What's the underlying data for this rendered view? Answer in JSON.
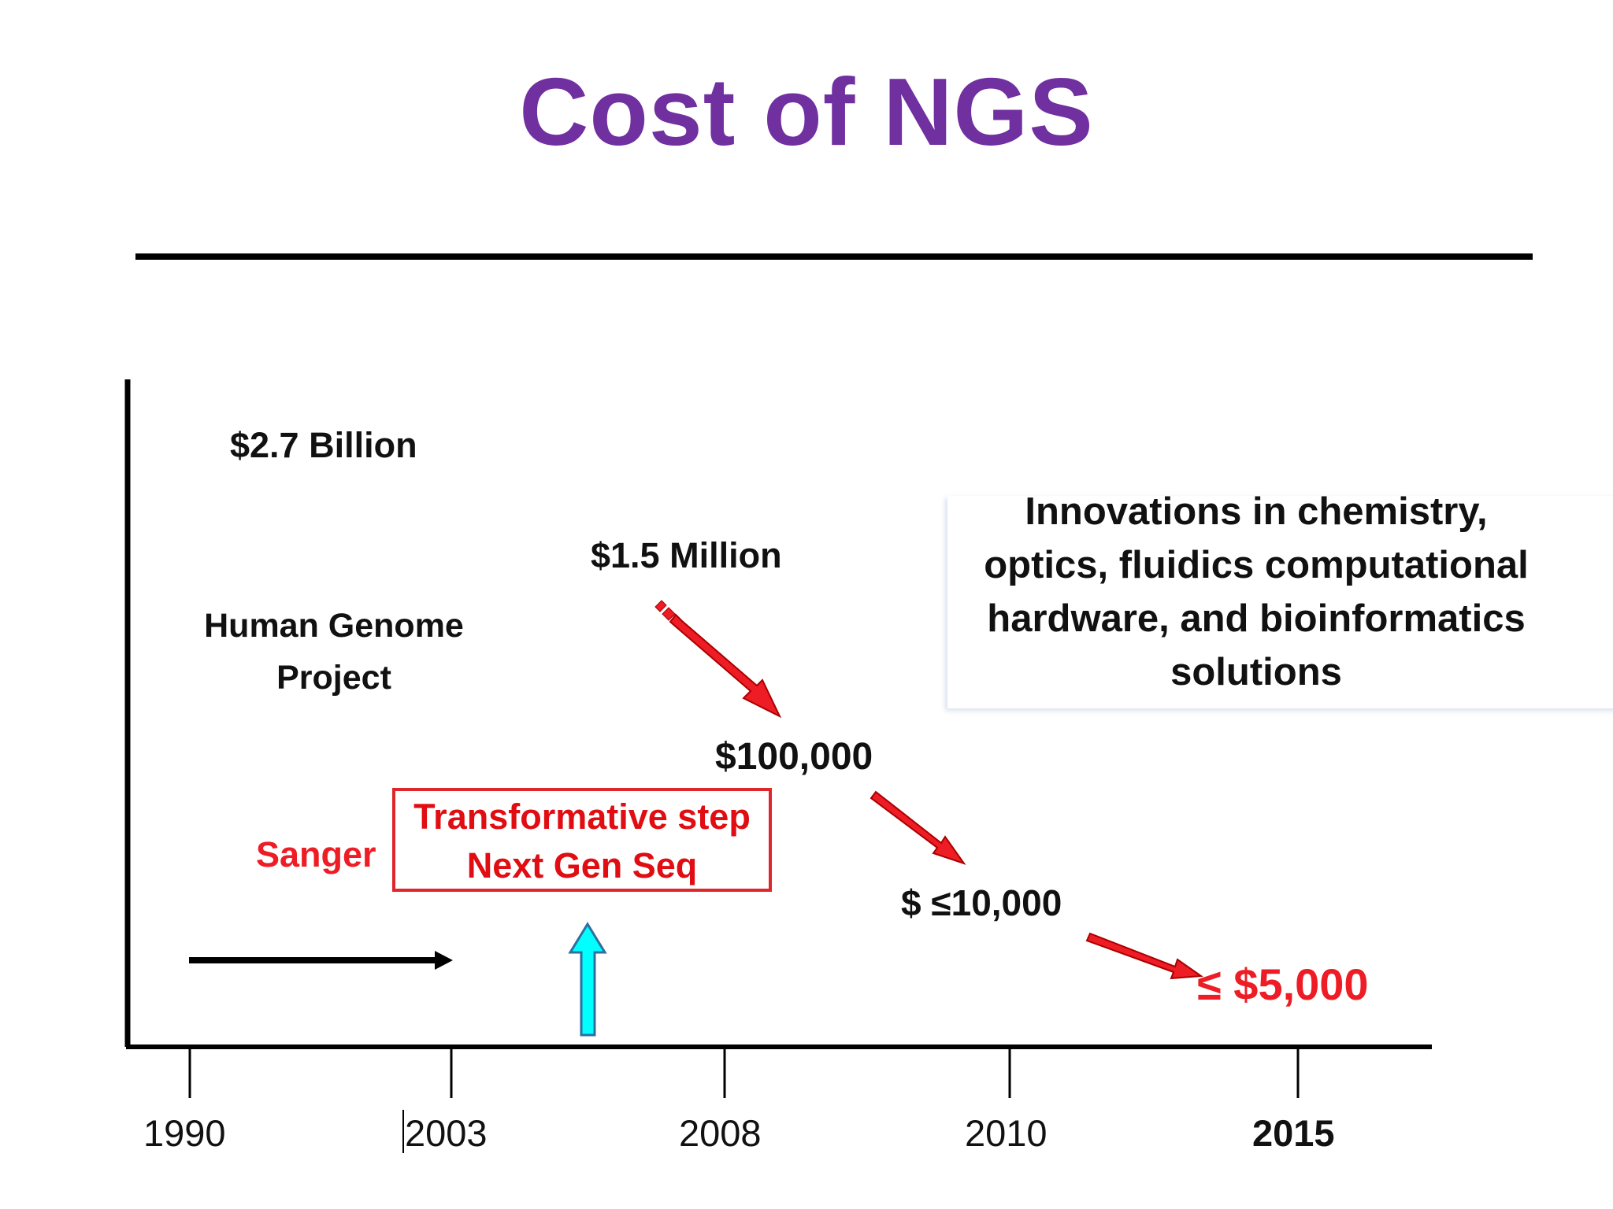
{
  "title": "Cost of NGS",
  "timeline": {
    "years": [
      "1990",
      "2003",
      "2008",
      "2010",
      "2015"
    ],
    "highlight_year": "2015"
  },
  "costs": {
    "hgp_cost": "$2.7 Billion",
    "million": "$1.5 Million",
    "hundred_k": "$100,000",
    "ten_k": "$ ≤10,000",
    "five_k": "≤ $5,000"
  },
  "hgp_label": [
    "Human Genome",
    "Project"
  ],
  "sanger": "Sanger",
  "transformative": [
    "Transformative step",
    "Next Gen Seq"
  ],
  "innovations": [
    "Innovations in chemistry,",
    "optics, fluidics  computational",
    "hardware, and bioinformatics",
    "solutions"
  ],
  "colors": {
    "title": "#7030a0",
    "red": "#ee1c24",
    "cyan_arrow": "#00ffff",
    "arrow_red": "#ee1c24"
  }
}
